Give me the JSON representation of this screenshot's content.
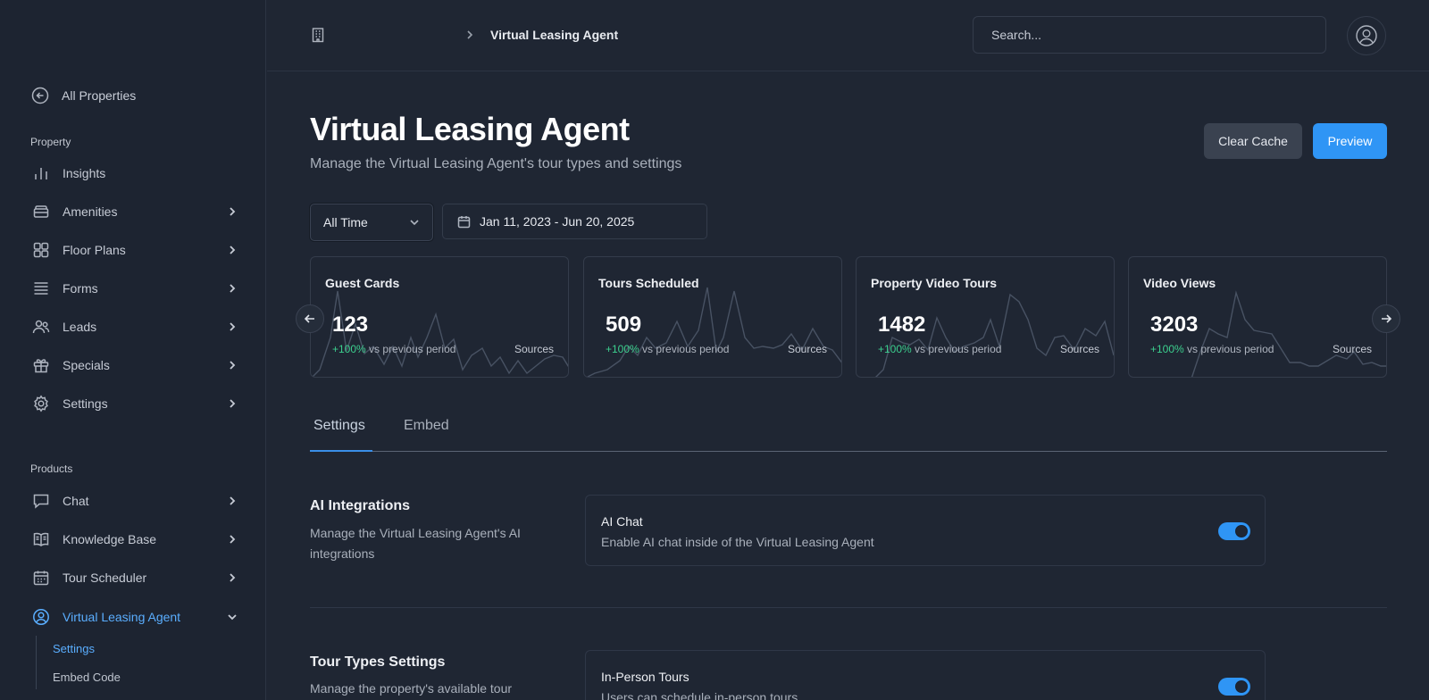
{
  "sidebar": {
    "back_label": "All Properties",
    "section_property": "Property",
    "section_products": "Products",
    "property_items": [
      {
        "label": "Insights",
        "icon": "bar-chart-icon"
      },
      {
        "label": "Amenities",
        "icon": "amenities-icon"
      },
      {
        "label": "Floor Plans",
        "icon": "grid-icon"
      },
      {
        "label": "Forms",
        "icon": "list-icon"
      },
      {
        "label": "Leads",
        "icon": "users-icon"
      },
      {
        "label": "Specials",
        "icon": "gift-icon"
      },
      {
        "label": "Settings",
        "icon": "gear-icon"
      }
    ],
    "product_items": [
      {
        "label": "Chat",
        "icon": "chat-icon"
      },
      {
        "label": "Knowledge Base",
        "icon": "book-icon"
      },
      {
        "label": "Tour Scheduler",
        "icon": "calendar-icon"
      },
      {
        "label": "Virtual Leasing Agent",
        "icon": "user-circle-icon"
      }
    ],
    "sub_items": [
      {
        "label": "Settings"
      },
      {
        "label": "Embed Code"
      }
    ]
  },
  "header": {
    "breadcrumb_current": "Virtual Leasing Agent",
    "search_placeholder": "Search..."
  },
  "main": {
    "title": "Virtual Leasing Agent",
    "subtitle": "Manage the Virtual Leasing Agent's tour types and settings",
    "clear_cache_label": "Clear Cache",
    "preview_label": "Preview",
    "time_filter": "All Time",
    "date_range": "Jan 11, 2023 - Jun 20, 2025",
    "stats": [
      {
        "title": "Guest Cards",
        "value": "123",
        "delta": "+100%",
        "delta_suffix": "vs previous period",
        "sources": "Sources"
      },
      {
        "title": "Tours Scheduled",
        "value": "509",
        "delta": "+100%",
        "delta_suffix": "vs previous period",
        "sources": "Sources"
      },
      {
        "title": "Property Video Tours",
        "value": "1482",
        "delta": "+100%",
        "delta_suffix": "vs previous period",
        "sources": "Sources"
      },
      {
        "title": "Video Views",
        "value": "3203",
        "delta": "+100%",
        "delta_suffix": "vs previous period",
        "sources": "Sources"
      }
    ],
    "tabs": [
      {
        "label": "Settings"
      },
      {
        "label": "Embed"
      }
    ],
    "ai_section": {
      "title": "AI Integrations",
      "description": "Manage the Virtual Leasing Agent's AI integrations",
      "setting_title": "AI Chat",
      "setting_desc": "Enable AI chat inside of the Virtual Leasing Agent",
      "enabled": true
    },
    "tour_section": {
      "title": "Tour Types Settings",
      "description": "Manage the property's available tour",
      "setting_title": "In-Person Tours",
      "setting_desc": "Users can schedule in-person tours",
      "enabled": true
    }
  },
  "colors": {
    "background": "#1f2633",
    "accent": "#2f95f5",
    "positive": "#3ccf8e"
  }
}
